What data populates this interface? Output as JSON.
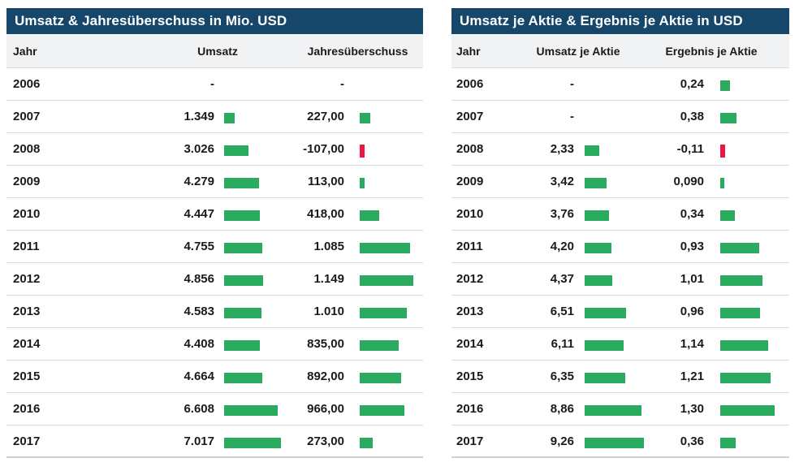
{
  "colors": {
    "positive_bar": "#2bab60",
    "negative_bar": "#f01441",
    "title_bg": "#16476b",
    "title_text": "#ffffff",
    "header_row_bg": "#f0f2f4"
  },
  "tables": [
    {
      "title": "Umsatz & Jahresüberschuss in Mio. USD",
      "headers": [
        "Jahr",
        "Umsatz",
        "Jahresüberschuss"
      ],
      "rows": [
        {
          "year": "2006",
          "v1": "-",
          "b1": null,
          "v2": "-",
          "b2": null
        },
        {
          "year": "2007",
          "v1": "1.349",
          "b1": 1349,
          "v2": "227,00",
          "b2": 227
        },
        {
          "year": "2008",
          "v1": "3.026",
          "b1": 3026,
          "v2": "-107,00",
          "b2": -107
        },
        {
          "year": "2009",
          "v1": "4.279",
          "b1": 4279,
          "v2": "113,00",
          "b2": 113
        },
        {
          "year": "2010",
          "v1": "4.447",
          "b1": 4447,
          "v2": "418,00",
          "b2": 418
        },
        {
          "year": "2011",
          "v1": "4.755",
          "b1": 4755,
          "v2": "1.085",
          "b2": 1085
        },
        {
          "year": "2012",
          "v1": "4.856",
          "b1": 4856,
          "v2": "1.149",
          "b2": 1149
        },
        {
          "year": "2013",
          "v1": "4.583",
          "b1": 4583,
          "v2": "1.010",
          "b2": 1010
        },
        {
          "year": "2014",
          "v1": "4.408",
          "b1": 4408,
          "v2": "835,00",
          "b2": 835
        },
        {
          "year": "2015",
          "v1": "4.664",
          "b1": 4664,
          "v2": "892,00",
          "b2": 892
        },
        {
          "year": "2016",
          "v1": "6.608",
          "b1": 6608,
          "v2": "966,00",
          "b2": 966
        },
        {
          "year": "2017",
          "v1": "7.017",
          "b1": 7017,
          "v2": "273,00",
          "b2": 273
        }
      ]
    },
    {
      "title": "Umsatz je Aktie & Ergebnis je Aktie in USD",
      "headers": [
        "Jahr",
        "Umsatz je Aktie",
        "Ergebnis je Aktie"
      ],
      "rows": [
        {
          "year": "2006",
          "v1": "-",
          "b1": null,
          "v2": "0,24",
          "b2": 0.24
        },
        {
          "year": "2007",
          "v1": "-",
          "b1": null,
          "v2": "0,38",
          "b2": 0.38
        },
        {
          "year": "2008",
          "v1": "2,33",
          "b1": 2.33,
          "v2": "-0,11",
          "b2": -0.11
        },
        {
          "year": "2009",
          "v1": "3,42",
          "b1": 3.42,
          "v2": "0,090",
          "b2": 0.09
        },
        {
          "year": "2010",
          "v1": "3,76",
          "b1": 3.76,
          "v2": "0,34",
          "b2": 0.34
        },
        {
          "year": "2011",
          "v1": "4,20",
          "b1": 4.2,
          "v2": "0,93",
          "b2": 0.93
        },
        {
          "year": "2012",
          "v1": "4,37",
          "b1": 4.37,
          "v2": "1,01",
          "b2": 1.01
        },
        {
          "year": "2013",
          "v1": "6,51",
          "b1": 6.51,
          "v2": "0,96",
          "b2": 0.96
        },
        {
          "year": "2014",
          "v1": "6,11",
          "b1": 6.11,
          "v2": "1,14",
          "b2": 1.14
        },
        {
          "year": "2015",
          "v1": "6,35",
          "b1": 6.35,
          "v2": "1,21",
          "b2": 1.21
        },
        {
          "year": "2016",
          "v1": "8,86",
          "b1": 8.86,
          "v2": "1,30",
          "b2": 1.3
        },
        {
          "year": "2017",
          "v1": "9,26",
          "b1": 9.26,
          "v2": "0,36",
          "b2": 0.36
        }
      ]
    }
  ],
  "chart_data": [
    {
      "type": "table",
      "title": "Umsatz & Jahresüberschuss in Mio. USD",
      "columns": [
        "Jahr",
        "Umsatz",
        "Jahresüberschuss"
      ],
      "categories": [
        "2006",
        "2007",
        "2008",
        "2009",
        "2010",
        "2011",
        "2012",
        "2013",
        "2014",
        "2015",
        "2016",
        "2017"
      ],
      "series": [
        {
          "name": "Umsatz",
          "values": [
            null,
            1349,
            3026,
            4279,
            4447,
            4755,
            4856,
            4583,
            4408,
            4664,
            6608,
            7017
          ]
        },
        {
          "name": "Jahresüberschuss",
          "values": [
            null,
            227,
            -107,
            113,
            418,
            1085,
            1149,
            1010,
            835,
            892,
            966,
            273
          ]
        }
      ],
      "layout_hints": {
        "inline_bars": true,
        "positive_color": "#2bab60",
        "negative_color": "#f01441"
      }
    },
    {
      "type": "table",
      "title": "Umsatz je Aktie & Ergebnis je Aktie in USD",
      "columns": [
        "Jahr",
        "Umsatz je Aktie",
        "Ergebnis je Aktie"
      ],
      "categories": [
        "2006",
        "2007",
        "2008",
        "2009",
        "2010",
        "2011",
        "2012",
        "2013",
        "2014",
        "2015",
        "2016",
        "2017"
      ],
      "series": [
        {
          "name": "Umsatz je Aktie",
          "values": [
            null,
            null,
            2.33,
            3.42,
            3.76,
            4.2,
            4.37,
            6.51,
            6.11,
            6.35,
            8.86,
            9.26
          ]
        },
        {
          "name": "Ergebnis je Aktie",
          "values": [
            0.24,
            0.38,
            -0.11,
            0.09,
            0.34,
            0.93,
            1.01,
            0.96,
            1.14,
            1.21,
            1.3,
            0.36
          ]
        }
      ],
      "layout_hints": {
        "inline_bars": true,
        "positive_color": "#2bab60",
        "negative_color": "#f01441"
      }
    }
  ]
}
